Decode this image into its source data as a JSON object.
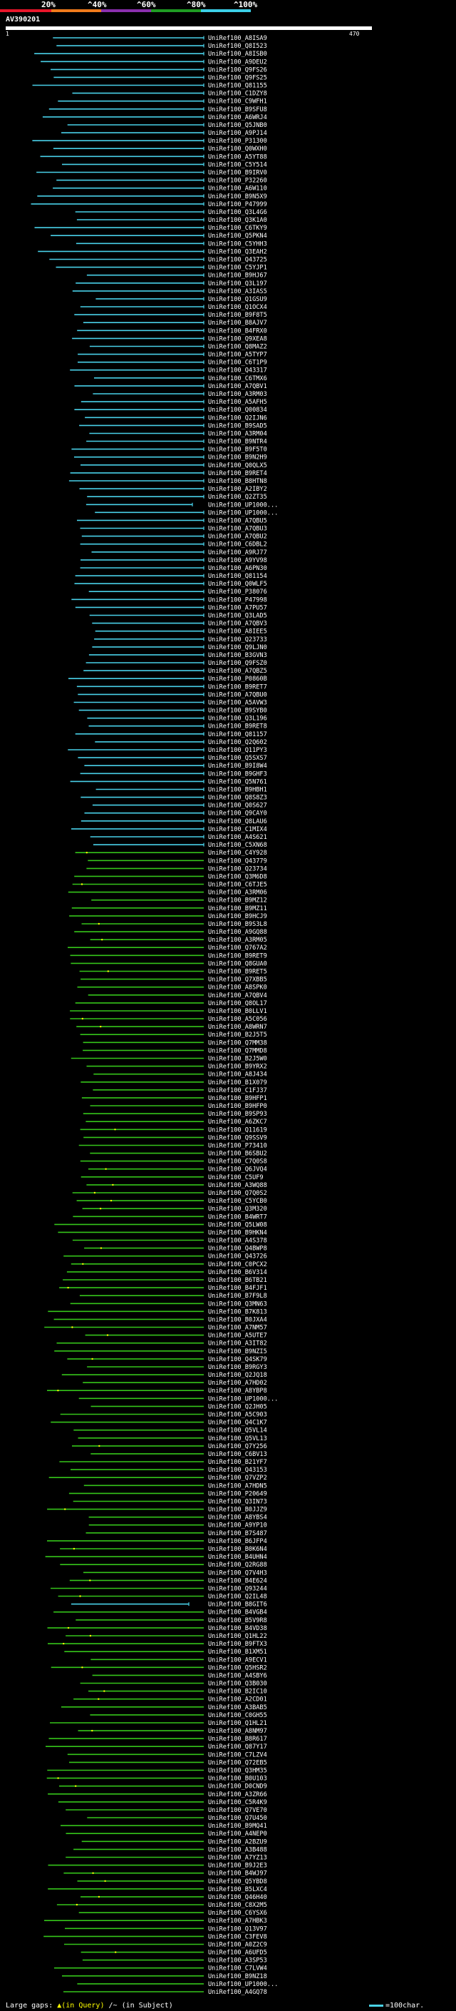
{
  "title": "AV390201",
  "scale": {
    "labels": [
      "20%",
      "^40%",
      "^60%",
      "^80%",
      "^100%"
    ],
    "colors": [
      "#e8162a",
      "#f07b1c",
      "#8b2fae",
      "#1f9c23",
      "#3cd0e8"
    ]
  },
  "query": {
    "start": "1",
    "end": "470"
  },
  "colors": {
    "full_length": "#49d0e8",
    "partial": "#35c41a",
    "gap_marker": "#ffff00"
  },
  "legend": {
    "gaps_text": "Large gaps: ",
    "gaps_query": "▲(in Query)",
    "gaps_subject": " /~ (in Subject)",
    "bar_text": "=100char."
  },
  "chart_data": {
    "type": "alignment",
    "query_length": 470,
    "ids": [
      "UniRef100_A8ISA9",
      "UniRef100_Q8I523",
      "UniRef100_A8ISB0",
      "UniRef100_A9DEU2",
      "UniRef100_Q9FS26",
      "UniRef100_Q9FS25",
      "UniRef100_Q81155",
      "UniRef100_C1DZY8",
      "UniRef100_C9WFH1",
      "UniRef100_B9SFU8",
      "UniRef100_A6WRJ4",
      "UniRef100_Q5JNB0",
      "UniRef100_A9PJ14",
      "UniRef100_P31300",
      "UniRef100_Q0WXH0",
      "UniRef100_A5YT88",
      "UniRef100_C5Y514",
      "UniRef100_B9IRV0",
      "UniRef100_P32260",
      "UniRef100_A6W110",
      "UniRef100_B9N5X9",
      "UniRef100_P47999",
      "UniRef100_Q3L4G6",
      "UniRef100_Q3K1A0",
      "UniRef100_C6TKY9",
      "UniRef100_Q5PKN4",
      "UniRef100_C5YHH3",
      "UniRef100_Q3EAH2",
      "UniRef100_Q43725",
      "UniRef100_C5YJP1",
      "UniRef100_B9HJ67",
      "UniRef100_Q3L197",
      "UniRef100_A3IAS5",
      "UniRef100_Q1GSU9",
      "UniRef100_Q1OCX4",
      "UniRef100_B9F8T5",
      "UniRef100_B8AJV7",
      "UniRef100_B4FRX0",
      "UniRef100_Q9XEA8",
      "UniRef100_Q8MAZ2",
      "UniRef100_A5TYP7",
      "UniRef100_C6T1P9",
      "UniRef100_Q43317",
      "UniRef100_C6TMX6",
      "UniRef100_A7QBV1",
      "UniRef100_A3RM03",
      "UniRef100_A5AFH5",
      "UniRef100_Q00834",
      "UniRef100_Q2IJN6",
      "UniRef100_B9SAD5",
      "UniRef100_A3RM04",
      "UniRef100_B9NTR4",
      "UniRef100_B9F5T0",
      "UniRef100_B9N2H9",
      "UniRef100_Q0QLX5",
      "UniRef100_B9RET4",
      "UniRef100_B8HTN8",
      "UniRef100_A2IBY2",
      "UniRef100_Q2ZT35",
      "UniRef100_UP1000...",
      "UniRef100_UP1000...",
      "UniRef100_A7QBU5",
      "UniRef100_A7QBU3",
      "UniRef100_A7QBU2",
      "UniRef100_C6DBL2",
      "UniRef100_A9RJ77",
      "UniRef100_A9YV98",
      "UniRef100_A6PN30",
      "UniRef100_Q81154",
      "UniRef100_Q0WLF5",
      "UniRef100_P38076",
      "UniRef100_P47998",
      "UniRef100_A7PU57",
      "UniRef100_Q3LAD5",
      "UniRef100_A7QBV3",
      "UniRef100_A8IEE5",
      "UniRef100_Q23733",
      "UniRef100_Q9LJN0",
      "UniRef100_B3GVN3",
      "UniRef100_Q9FSZ0",
      "UniRef100_A7QBZ5",
      "UniRef100_P0860B",
      "UniRef100_B9RET7",
      "UniRef100_A7QBU0",
      "UniRef100_A5AVW3",
      "UniRef100_B9SYB0",
      "UniRef100_Q3L196",
      "UniRef100_B9RET8",
      "UniRef100_Q81157",
      "UniRef100_Q2Q602",
      "UniRef100_Q11PY3",
      "UniRef100_Q5SXS7",
      "UniRef100_B9I8W4",
      "UniRef100_B9GHF3",
      "UniRef100_Q5N761",
      "UniRef100_B9HBH1",
      "UniRef100_Q8S8Z3",
      "UniRef100_Q0S627",
      "UniRef100_Q9CAY0",
      "UniRef100_Q8LAU6",
      "UniRef100_C1MIX4",
      "UniRef100_A4S621",
      "UniRef100_C5XN68",
      "UniRef100_C4Y928",
      "UniRef100_Q43779",
      "UniRef100_Q23734",
      "UniRef100_Q3M6D8",
      "UniRef100_C6TJE5",
      "UniRef100_A3RM06",
      "UniRef100_B9MZ12",
      "UniRef100_B9MZ11",
      "UniRef100_B9HCJ9",
      "UniRef100_B9S3L8",
      "UniRef100_A9GQ88",
      "UniRef100_A3RM05",
      "UniRef100_Q767A2",
      "UniRef100_B9RET9",
      "UniRef100_Q8GUA0",
      "UniRef100_B9RET5",
      "UniRef100_Q7XBB5",
      "UniRef100_A8SPK0",
      "UniRef100_A7QBV4",
      "UniRef100_Q8OL17",
      "UniRef100_B0LLV1",
      "UniRef100_A5C056",
      "UniRef100_A8WRN7",
      "UniRef100_B2J5T5",
      "UniRef100_Q7MM38",
      "UniRef100_Q7MMD8",
      "UniRef100_B2J5W0",
      "UniRef100_B9YRX2",
      "UniRef100_A8J434",
      "UniRef100_B1X079",
      "UniRef100_C1FJ37",
      "UniRef100_B9HFP1",
      "UniRef100_B9HFP0",
      "UniRef100_B9SP93",
      "UniRef100_A6ZKC7",
      "UniRef100_Q11619",
      "UniRef100_Q9SSV9",
      "UniRef100_P73410",
      "UniRef100_B6SBU2",
      "UniRef100_C7Q0S8",
      "UniRef100_Q6JVQ4",
      "UniRef100_C5UF9",
      "UniRef100_A3WQ88",
      "UniRef100_Q7Q0S2",
      "UniRef100_C5YCB0",
      "UniRef100_Q3M320",
      "UniRef100_B4WRT7",
      "UniRef100_Q5LW08",
      "UniRef100_B9HKN4",
      "UniRef100_A4S378",
      "UniRef100_Q4BWP8",
      "UniRef100_Q43726",
      "UniRef100_C0PCX2",
      "UniRef100_B6V314",
      "UniRef100_B6TB21",
      "UniRef100_B4FJF1",
      "UniRef100_B7F9L8",
      "UniRef100_Q3MN63",
      "UniRef100_B7K813",
      "UniRef100_B0JXA4",
      "UniRef100_A7NM57",
      "UniRef100_A5UTE7",
      "UniRef100_A3IT82",
      "UniRef100_B9NZI5",
      "UniRef100_Q4SK79",
      "UniRef100_B9RGY3",
      "UniRef100_Q2JQ18",
      "UniRef100_A7HD02",
      "UniRef100_A8YBP8",
      "UniRef100_UP1000...",
      "UniRef100_Q2JH05",
      "UniRef100_A5C903",
      "UniRef100_Q4C1K7",
      "UniRef100_Q5VL14",
      "UniRef100_Q5VL13",
      "UniRef100_Q7Y256",
      "UniRef100_C6BV13",
      "UniRef100_B21YF7",
      "UniRef100_Q43153",
      "UniRef100_Q7VZP2",
      "UniRef100_A7HDN5",
      "UniRef100_P20649",
      "UniRef100_Q3IN73",
      "UniRef100_B0JJZ9",
      "UniRef100_A8YBS4",
      "UniRef100_A9YP10",
      "UniRef100_B7S487",
      "UniRef100_B6JFP4",
      "UniRef100_B0K6N4",
      "UniRef100_B4UHN4",
      "UniRef100_Q2RG88",
      "UniRef100_Q7V4H3",
      "UniRef100_B4E624",
      "UniRef100_Q93244",
      "UniRef100_Q2IL48",
      "UniRef100_B8GIT6",
      "UniRef100_B4VGB4",
      "UniRef100_B5V9R8",
      "UniRef100_B4VD38",
      "UniRef100_Q1HL22",
      "UniRef100_B9FTX3",
      "UniRef100_B1XM51",
      "UniRef100_A9ECV1",
      "UniRef100_Q5HSR2",
      "UniRef100_A4SBY6",
      "UniRef100_Q3B030",
      "UniRef100_B2IC10",
      "UniRef100_A2CD01",
      "UniRef100_A3BAB5",
      "UniRef100_C0GH55",
      "UniRef100_Q1HL21",
      "UniRef100_A8NM97",
      "UniRef100_B8R617",
      "UniRef100_Q87Y17",
      "UniRef100_C7LZV4",
      "UniRef100_Q72EB5",
      "UniRef100_Q3HM35",
      "UniRef100_B0U103",
      "UniRef100_D0CND9",
      "UniRef100_A3ZR66",
      "UniRef100_C5R4K9",
      "UniRef100_Q7VE70",
      "UniRef100_Q7U450",
      "UniRef100_B9MQ41",
      "UniRef100_A4NEP0",
      "UniRef100_A2BZU9",
      "UniRef100_A3B488",
      "UniRef100_A7YZ13",
      "UniRef100_B9J2E3",
      "UniRef100_B4WJ97",
      "UniRef100_Q5YBD8",
      "UniRef100_B5LXC4",
      "UniRef100_Q46H40",
      "UniRef100_C8X2M5",
      "UniRef100_C6YSX6",
      "UniRef100_A7HBK3",
      "UniRef100_Q13V97",
      "UniRef100_C3FEV8",
      "UniRef100_A0Z2C9",
      "UniRef100_A6UFD5",
      "UniRef100_A3SP53",
      "UniRef100_C7LVW4",
      "UniRef100_B9NZ18",
      "UniRef100_UP1000...",
      "UniRef100_A4GQ78"
    ],
    "full_length_count": 103,
    "full_length_extra_index": 198,
    "long_tail_index": 59
  }
}
